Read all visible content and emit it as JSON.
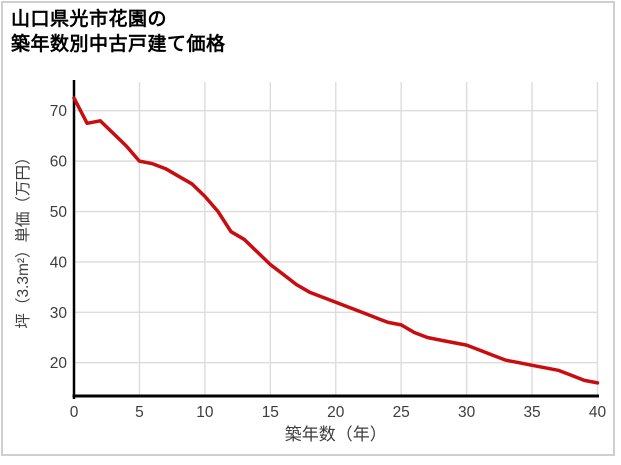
{
  "header": {
    "title_line1": "山口県光市花園の",
    "title_line2": "築年数別中古戸建て価格"
  },
  "chart_data": {
    "type": "line",
    "title": "山口県光市花園の築年数別中古戸建て価格",
    "xlabel": "築年数（年）",
    "ylabel": "坪（3.3m²）単価（万円）",
    "x": [
      0,
      1,
      2,
      3,
      4,
      5,
      6,
      7,
      8,
      9,
      10,
      11,
      12,
      13,
      14,
      15,
      16,
      17,
      18,
      19,
      20,
      21,
      22,
      23,
      24,
      25,
      26,
      27,
      28,
      29,
      30,
      31,
      32,
      33,
      34,
      35,
      36,
      37,
      38,
      39,
      40
    ],
    "y": [
      72.5,
      67.5,
      68,
      65.5,
      63,
      60,
      59.5,
      58.5,
      57,
      55.5,
      53,
      50,
      46,
      44.5,
      42,
      39.5,
      37.5,
      35.5,
      34,
      33,
      32,
      31,
      30,
      29,
      28,
      27.5,
      26,
      25,
      24.5,
      24,
      23.5,
      22.5,
      21.5,
      20.5,
      20,
      19.5,
      19,
      18.5,
      17.5,
      16.5,
      16
    ],
    "x_ticks": [
      0,
      5,
      10,
      15,
      20,
      25,
      30,
      35,
      40
    ],
    "y_ticks": [
      20,
      30,
      40,
      50,
      60,
      70
    ],
    "xlim": [
      0,
      40
    ],
    "ylim": [
      13.4,
      75.7
    ],
    "grid": true,
    "legend": "none",
    "line_color": "#c90c10",
    "grid_color": "#dcdcdc",
    "axis_color": "#000000",
    "tick_color": "#3d3d3d",
    "border_color": "#cfcfcf"
  }
}
